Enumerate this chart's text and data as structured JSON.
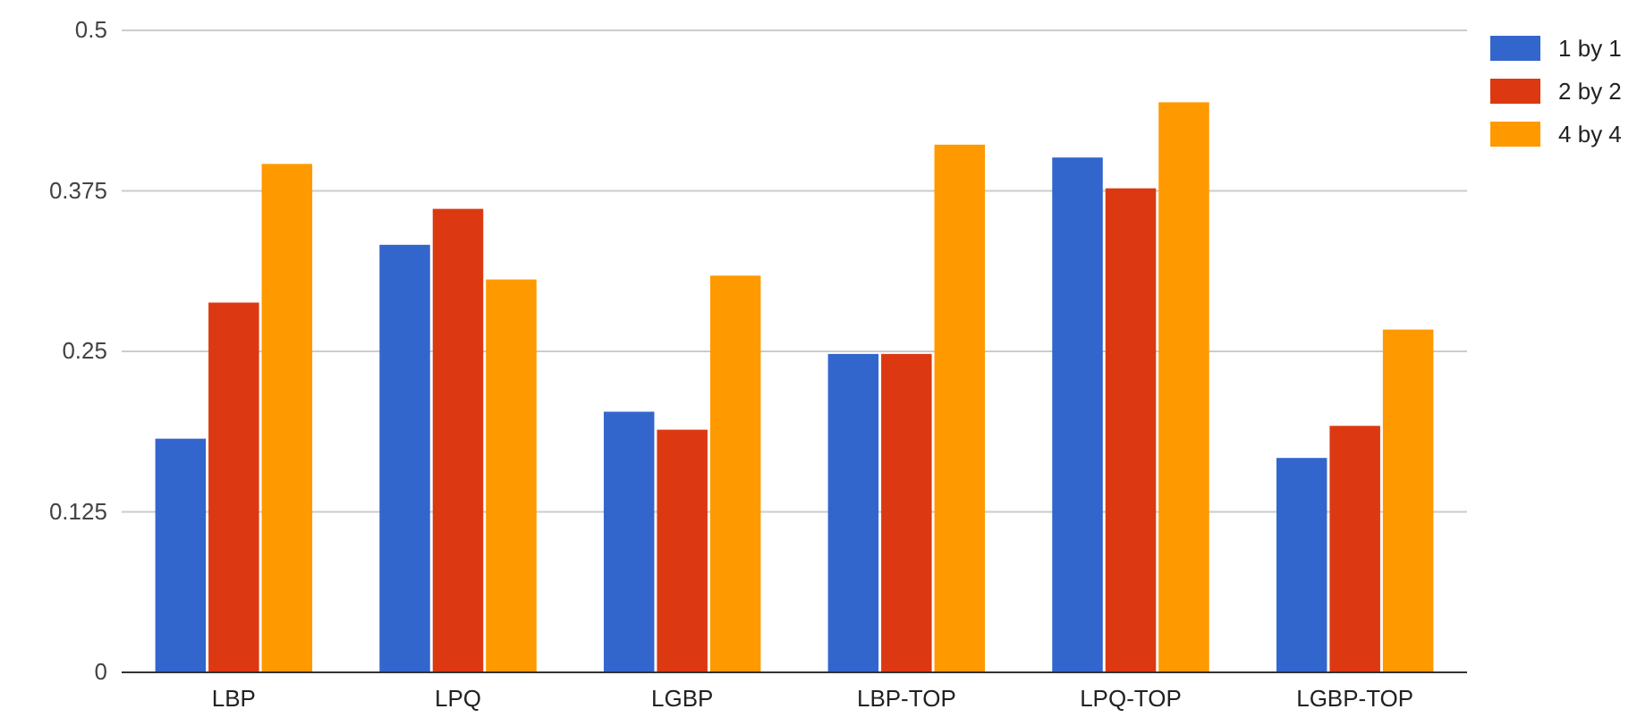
{
  "chart_data": {
    "type": "bar",
    "categories": [
      "LBP",
      "LPQ",
      "LGBP",
      "LBP-TOP",
      "LPQ-TOP",
      "LGBP-TOP"
    ],
    "series": [
      {
        "name": "1 by 1",
        "color": "#3366cc",
        "values": [
          0.182,
          0.333,
          0.203,
          0.248,
          0.401,
          0.167
        ]
      },
      {
        "name": "2 by 2",
        "color": "#dc3912",
        "values": [
          0.288,
          0.361,
          0.189,
          0.248,
          0.377,
          0.192
        ]
      },
      {
        "name": "4 by 4",
        "color": "#ff9900",
        "values": [
          0.396,
          0.306,
          0.309,
          0.411,
          0.444,
          0.267
        ]
      }
    ],
    "ylim": [
      0,
      0.5
    ],
    "yticks": [
      0,
      0.125,
      0.25,
      0.375,
      0.5
    ],
    "grid": "y",
    "legend": "top right"
  }
}
